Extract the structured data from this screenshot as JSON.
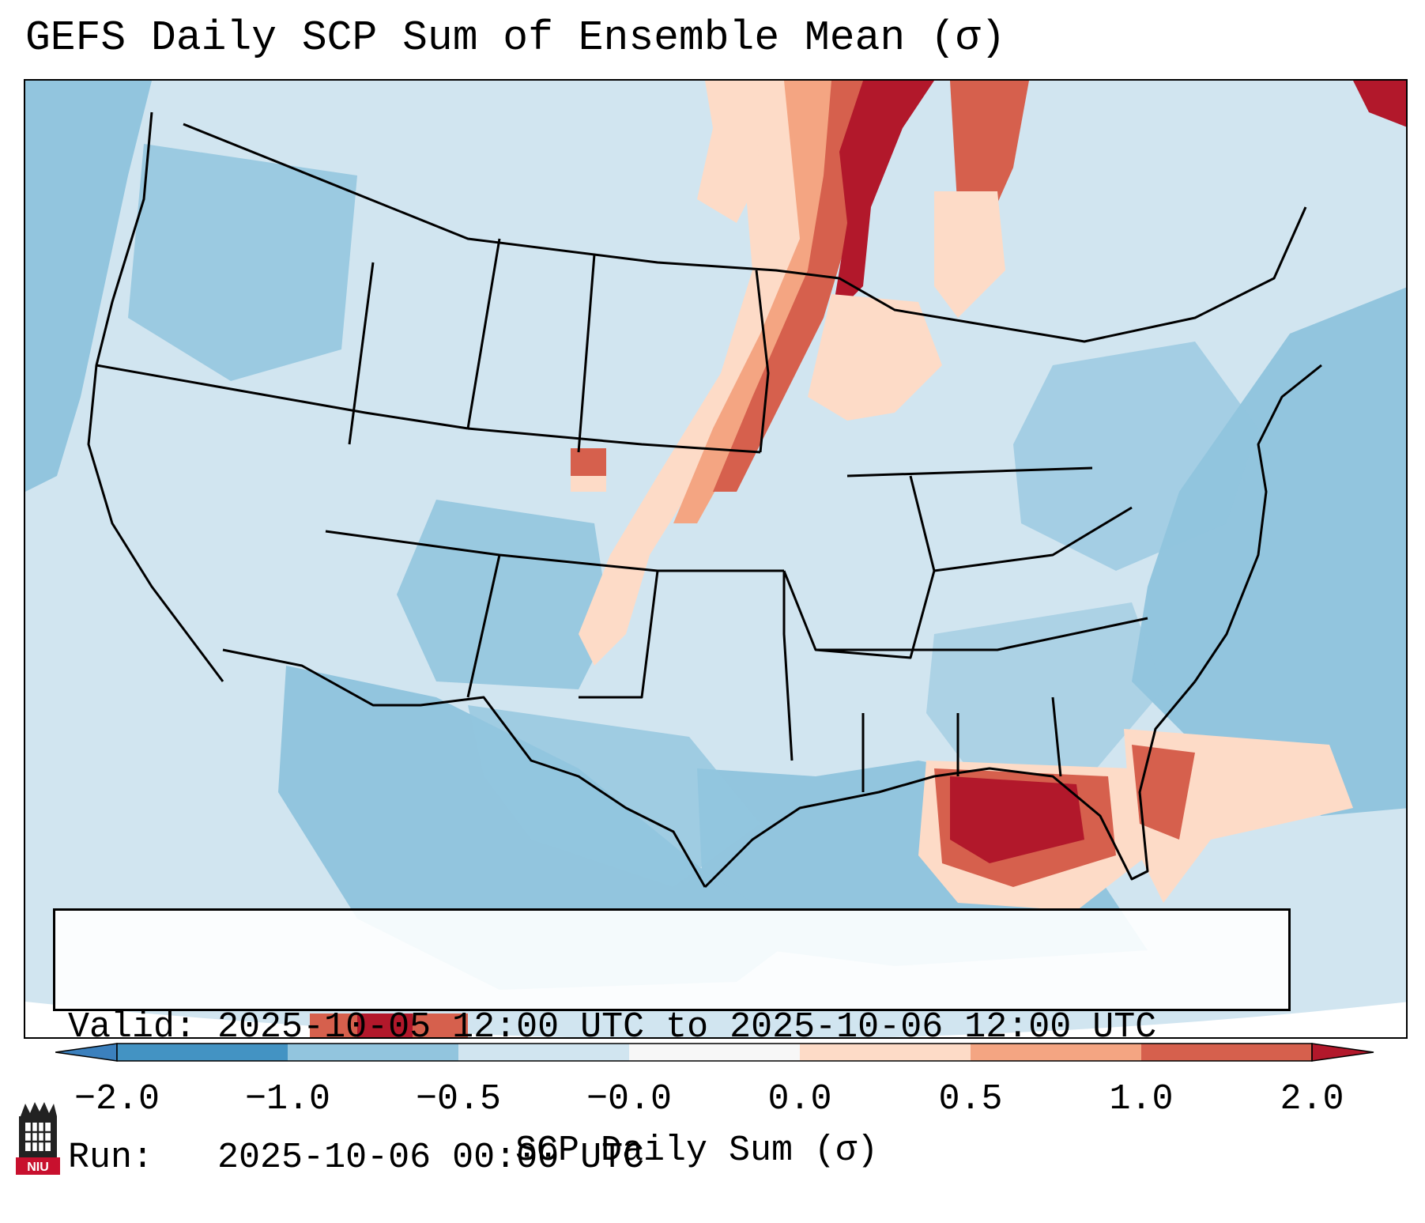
{
  "title": "GEFS Daily SCP Sum of Ensemble Mean (σ)",
  "info": {
    "valid_label": "Valid:",
    "valid_value": "2025-10-05 12:00 UTC to 2025-10-06 12:00 UTC",
    "run_label": "Run:",
    "run_value": "2025-10-06 00:00 UTC"
  },
  "colorbar": {
    "label": "SCP Daily Sum (σ)",
    "ticks": [
      "−2.0",
      "−1.0",
      "−0.5",
      "−0.0",
      "0.0",
      "0.5",
      "1.0",
      "2.0"
    ],
    "colors": {
      "below_min": "#3b80bd",
      "bin_m2_m1": "#4393c3",
      "bin_m1_m05": "#92c5de",
      "bin_m05_0": "#d1e5f0",
      "bin_zero": "#f7f7f7",
      "bin_0_05": "#fddbc7",
      "bin_05_1": "#f4a582",
      "bin_1_2": "#d6604d",
      "above_max": "#b2182b"
    }
  },
  "legend_palette": {
    "ocean_light": "#d1e5f0",
    "ocean_mid": "#92c5de",
    "positive_light": "#fddbc7",
    "positive_mid": "#f4a582",
    "positive_strong": "#d6604d",
    "positive_max": "#b2182b"
  },
  "logo": {
    "text": "NIU",
    "icon": "university-tower-icon"
  }
}
